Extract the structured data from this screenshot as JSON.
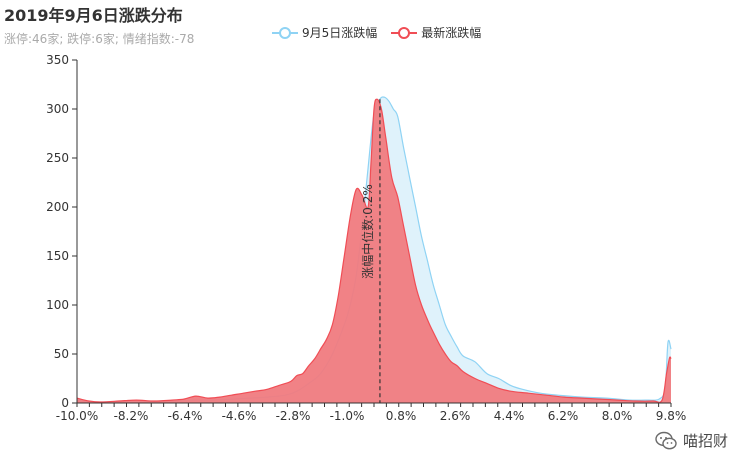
{
  "header": {
    "title": "2019年9月6日涨跌分布",
    "subtitle": "涨停:46家; 跌停:6家; 情绪指数:-78"
  },
  "legend": [
    {
      "label": "9月5日涨跌幅",
      "color": "#8fd3f4"
    },
    {
      "label": "最新涨跌幅",
      "color": "#f04d55"
    }
  ],
  "watermark": {
    "text": "喵招财",
    "icon": "wechat-icon"
  },
  "chart_data": {
    "type": "area",
    "xlabel": "",
    "ylabel": "",
    "x_tick_labels": [
      "-10.0%",
      "-8.2%",
      "-6.4%",
      "-4.6%",
      "-2.8%",
      "-1.0%",
      "0.8%",
      "2.6%",
      "4.4%",
      "6.2%",
      "8.0%",
      "9.8%"
    ],
    "y_ticks": [
      0,
      50,
      100,
      150,
      200,
      250,
      300,
      350
    ],
    "xlim": [
      -10.0,
      10.0
    ],
    "ylim": [
      0,
      350
    ],
    "median_line": {
      "x": 0.2,
      "label": "涨幅中位数:0.2%"
    },
    "series": [
      {
        "name": "9月5日涨跌幅",
        "color": "#8fd3f4",
        "fill": "#dff2fb",
        "points": [
          [
            -10.0,
            3
          ],
          [
            -9.6,
            1
          ],
          [
            -9.0,
            1
          ],
          [
            -8.4,
            1
          ],
          [
            -7.8,
            1
          ],
          [
            -7.2,
            2
          ],
          [
            -6.6,
            2
          ],
          [
            -6.0,
            3
          ],
          [
            -5.4,
            3
          ],
          [
            -4.8,
            4
          ],
          [
            -4.2,
            5
          ],
          [
            -3.6,
            6
          ],
          [
            -3.0,
            8
          ],
          [
            -2.6,
            12
          ],
          [
            -2.2,
            20
          ],
          [
            -1.8,
            30
          ],
          [
            -1.4,
            50
          ],
          [
            -1.0,
            80
          ],
          [
            -0.8,
            100
          ],
          [
            -0.6,
            130
          ],
          [
            -0.4,
            180
          ],
          [
            -0.2,
            240
          ],
          [
            0.0,
            295
          ],
          [
            0.2,
            310
          ],
          [
            0.35,
            312
          ],
          [
            0.5,
            308
          ],
          [
            0.65,
            300
          ],
          [
            0.8,
            292
          ],
          [
            1.0,
            260
          ],
          [
            1.2,
            230
          ],
          [
            1.4,
            200
          ],
          [
            1.6,
            170
          ],
          [
            1.8,
            145
          ],
          [
            2.0,
            120
          ],
          [
            2.2,
            100
          ],
          [
            2.4,
            80
          ],
          [
            2.6,
            68
          ],
          [
            2.8,
            57
          ],
          [
            3.0,
            48
          ],
          [
            3.4,
            42
          ],
          [
            3.8,
            30
          ],
          [
            4.2,
            25
          ],
          [
            4.6,
            18
          ],
          [
            5.0,
            14
          ],
          [
            5.6,
            10
          ],
          [
            6.2,
            8
          ],
          [
            7.0,
            6
          ],
          [
            7.8,
            5
          ],
          [
            8.6,
            3
          ],
          [
            9.2,
            3
          ],
          [
            9.6,
            4
          ],
          [
            9.8,
            15
          ],
          [
            9.9,
            62
          ],
          [
            10.0,
            55
          ]
        ]
      },
      {
        "name": "最新涨跌幅",
        "color": "#f04d55",
        "fill": "#f07b7f",
        "points": [
          [
            -10.0,
            5
          ],
          [
            -9.6,
            2
          ],
          [
            -9.2,
            1
          ],
          [
            -8.6,
            2
          ],
          [
            -8.0,
            3
          ],
          [
            -7.4,
            2
          ],
          [
            -6.8,
            3
          ],
          [
            -6.4,
            4
          ],
          [
            -6.0,
            7
          ],
          [
            -5.6,
            5
          ],
          [
            -5.2,
            6
          ],
          [
            -4.8,
            8
          ],
          [
            -4.4,
            10
          ],
          [
            -4.0,
            12
          ],
          [
            -3.6,
            14
          ],
          [
            -3.2,
            18
          ],
          [
            -2.8,
            22
          ],
          [
            -2.6,
            28
          ],
          [
            -2.4,
            30
          ],
          [
            -2.2,
            38
          ],
          [
            -2.0,
            45
          ],
          [
            -1.8,
            55
          ],
          [
            -1.6,
            65
          ],
          [
            -1.4,
            80
          ],
          [
            -1.2,
            110
          ],
          [
            -1.0,
            150
          ],
          [
            -0.8,
            190
          ],
          [
            -0.6,
            218
          ],
          [
            -0.4,
            212
          ],
          [
            -0.2,
            200
          ],
          [
            -0.1,
            245
          ],
          [
            0.0,
            300
          ],
          [
            0.1,
            310
          ],
          [
            0.25,
            300
          ],
          [
            0.4,
            270
          ],
          [
            0.6,
            230
          ],
          [
            0.8,
            210
          ],
          [
            1.0,
            180
          ],
          [
            1.2,
            150
          ],
          [
            1.4,
            120
          ],
          [
            1.6,
            100
          ],
          [
            1.8,
            85
          ],
          [
            2.0,
            72
          ],
          [
            2.2,
            60
          ],
          [
            2.4,
            50
          ],
          [
            2.6,
            42
          ],
          [
            2.8,
            38
          ],
          [
            3.0,
            32
          ],
          [
            3.4,
            25
          ],
          [
            3.8,
            20
          ],
          [
            4.2,
            15
          ],
          [
            4.6,
            12
          ],
          [
            5.2,
            10
          ],
          [
            5.8,
            8
          ],
          [
            6.4,
            6
          ],
          [
            7.0,
            5
          ],
          [
            7.6,
            4
          ],
          [
            8.2,
            3
          ],
          [
            8.8,
            2
          ],
          [
            9.4,
            2
          ],
          [
            9.7,
            3
          ],
          [
            9.85,
            30
          ],
          [
            9.95,
            46
          ],
          [
            10.0,
            45
          ]
        ]
      }
    ]
  }
}
